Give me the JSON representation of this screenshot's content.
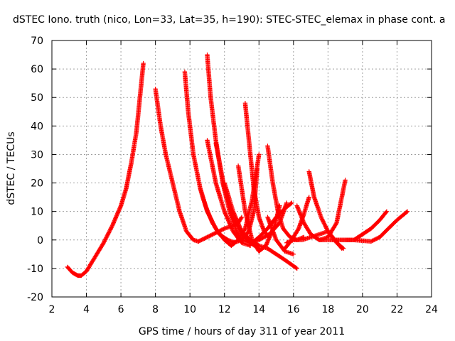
{
  "chart_data": {
    "type": "scatter",
    "title": "dSTEC Iono. truth (nico, Lon=33, Lat=35, h=190): STEC-STEC_elemax in phase cont. a",
    "xlabel": "GPS time / hours of day 311 of year 2011",
    "ylabel": "dSTEC  / TECUs",
    "xlim": [
      2,
      24
    ],
    "ylim": [
      -20,
      70
    ],
    "xticks": [
      "2",
      "4",
      "6",
      "8",
      "10",
      "12",
      "14",
      "16",
      "18",
      "20",
      "22",
      "24"
    ],
    "yticks": [
      "-20",
      "-10",
      "0",
      "10",
      "20",
      "30",
      "40",
      "50",
      "60",
      "70"
    ],
    "grid": true,
    "legend": "none",
    "marker": "plus",
    "color": "#ff0000",
    "series": [
      {
        "x": [
          2.9,
          3.2,
          3.5,
          3.7,
          4.0,
          4.5,
          5.0,
          5.5,
          6.0,
          6.3,
          6.6,
          6.9,
          7.1,
          7.3
        ],
        "y": [
          -9.5,
          -11.5,
          -12.5,
          -12.5,
          -11,
          -6,
          -1,
          5,
          12,
          18,
          27,
          38,
          50,
          62
        ]
      },
      {
        "x": [
          8.0,
          8.3,
          8.6,
          9.0,
          9.4,
          9.8,
          10.2,
          10.5
        ],
        "y": [
          53,
          40,
          30,
          20,
          10,
          3,
          0,
          -0.5
        ]
      },
      {
        "x": [
          10.5,
          11.0,
          11.5,
          12.0,
          12.5,
          12.8,
          13.0
        ],
        "y": [
          -0.5,
          1,
          2.5,
          4,
          5,
          6,
          8
        ]
      },
      {
        "x": [
          9.7,
          9.9,
          10.2,
          10.6,
          11.0,
          11.5,
          12.0,
          12.4
        ],
        "y": [
          59,
          45,
          30,
          18,
          10,
          4,
          0,
          -2
        ]
      },
      {
        "x": [
          10.6,
          10.9,
          11.3,
          11.7,
          12.2,
          12.6
        ],
        "y": [
          18,
          12,
          6,
          2,
          0,
          -1
        ]
      },
      {
        "x": [
          11.0,
          11.2,
          11.5,
          11.9,
          12.3,
          12.7,
          13.0
        ],
        "y": [
          65,
          50,
          35,
          20,
          10,
          3,
          0
        ]
      },
      {
        "x": [
          11.0,
          11.5,
          12.0,
          12.5,
          13.0,
          13.5
        ],
        "y": [
          35,
          20,
          10,
          3,
          -1,
          -2
        ]
      },
      {
        "x": [
          11.5,
          12.0,
          12.5,
          13.0,
          13.5
        ],
        "y": [
          34,
          18,
          8,
          2,
          -1
        ]
      },
      {
        "x": [
          12.0,
          12.5,
          13.0,
          13.5,
          14.0
        ],
        "y": [
          20,
          10,
          3,
          -1,
          -3
        ]
      },
      {
        "x": [
          12.8,
          13.2,
          13.6,
          14.0,
          14.4,
          14.9,
          15.2
        ],
        "y": [
          26,
          10,
          0,
          -4,
          -2,
          5,
          12
        ]
      },
      {
        "x": [
          13.2,
          13.5,
          13.7,
          14.0,
          14.3,
          14.6
        ],
        "y": [
          48,
          30,
          18,
          8,
          3,
          1
        ]
      },
      {
        "x": [
          12.4,
          12.8,
          13.2,
          13.6,
          14.0
        ],
        "y": [
          -2,
          0,
          4,
          14,
          30
        ]
      },
      {
        "x": [
          13.0,
          13.5,
          14.0,
          14.6,
          15.2,
          15.6
        ],
        "y": [
          0,
          -1,
          0,
          2,
          6,
          13
        ]
      },
      {
        "x": [
          12.5,
          13.0,
          13.4,
          13.7,
          13.9
        ],
        "y": [
          -1,
          0,
          3,
          10,
          25
        ]
      },
      {
        "x": [
          14.5,
          14.8,
          15.1,
          15.4,
          15.8,
          16.2,
          16.6
        ],
        "y": [
          33,
          20,
          10,
          4,
          1,
          0,
          1
        ]
      },
      {
        "x": [
          13.6,
          14.0,
          14.5,
          15.0,
          15.5,
          15.9
        ],
        "y": [
          -1,
          1,
          4,
          8,
          11,
          13
        ]
      },
      {
        "x": [
          14.5,
          15.0,
          15.5,
          16.0
        ],
        "y": [
          8,
          0,
          -4,
          -5
        ]
      },
      {
        "x": [
          13.0,
          13.5,
          14.0,
          14.5,
          15.0,
          15.5,
          16.2
        ],
        "y": [
          3,
          0,
          -2,
          -3,
          -5,
          -7,
          -10
        ]
      },
      {
        "x": [
          15.5,
          15.9,
          16.3,
          16.6,
          16.9
        ],
        "y": [
          -3,
          0,
          4,
          9,
          15
        ]
      },
      {
        "x": [
          16.2,
          16.6,
          17.0,
          17.5,
          18.0,
          18.5,
          19.0
        ],
        "y": [
          12,
          6,
          2,
          0,
          1,
          6,
          21
        ]
      },
      {
        "x": [
          16.9,
          17.2,
          17.6,
          18.0,
          18.5,
          18.9
        ],
        "y": [
          24,
          15,
          8,
          3,
          -1,
          -3
        ]
      },
      {
        "x": [
          15.6,
          16.0,
          16.5,
          17.0,
          17.5,
          18.0,
          18.8
        ],
        "y": [
          -1,
          0,
          0,
          1,
          2,
          3,
          -3
        ]
      },
      {
        "x": [
          17.5,
          18.5,
          19.5,
          20.0,
          20.5,
          21.0,
          21.4
        ],
        "y": [
          0,
          0,
          0,
          2,
          4,
          7,
          10
        ]
      },
      {
        "x": [
          18.5,
          19.5,
          20.5,
          21.0,
          21.5,
          22.0,
          22.6
        ],
        "y": [
          0,
          0,
          -0.5,
          1,
          4,
          7,
          10
        ]
      }
    ]
  }
}
